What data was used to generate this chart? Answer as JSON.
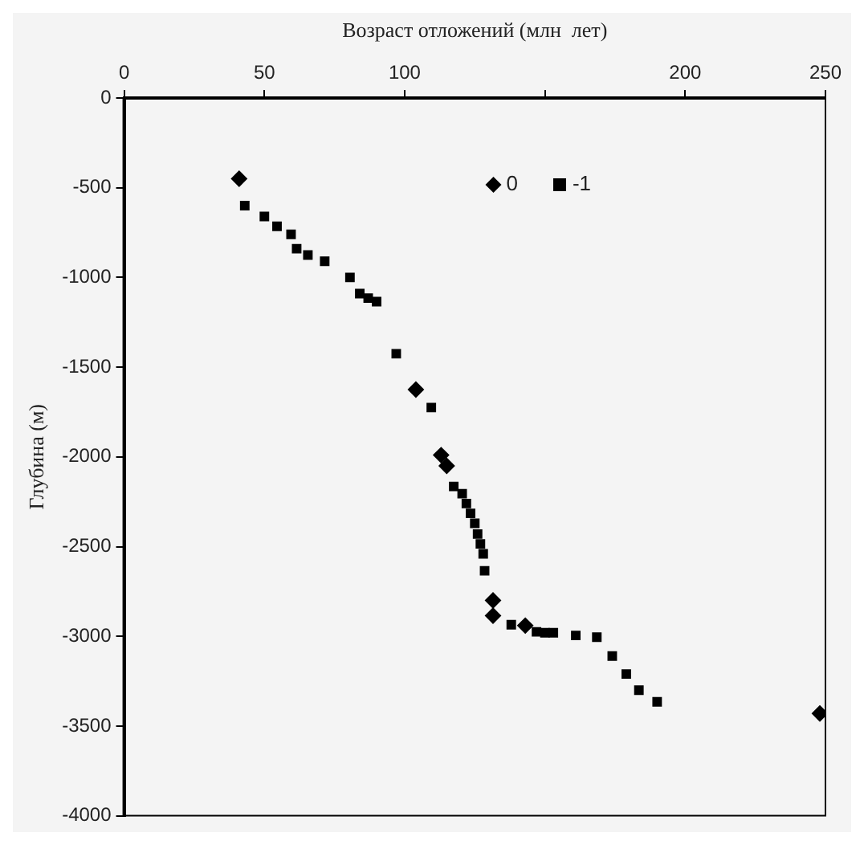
{
  "chart_data": {
    "type": "scatter",
    "xlabel": "Возраст отложений (млн  лет)",
    "ylabel": "Глубина (м)",
    "xlim": [
      0,
      250
    ],
    "xticks": [
      0,
      50,
      100,
      {
        "value": 150,
        "label": null
      },
      200,
      250
    ],
    "ylim": [
      -4000,
      0
    ],
    "yticks": [
      -4000,
      -3500,
      -3000,
      -2500,
      -2000,
      -1500,
      -1000,
      -500,
      0
    ],
    "grid": false,
    "legend": "top",
    "series": [
      {
        "name": "0",
        "color": "#000000",
        "marker": "diamond",
        "x": [
          41,
          104,
          113,
          115,
          131.5,
          131.5,
          143,
          248
        ],
        "values": [
          -450,
          -1625,
          -1990,
          -2050,
          -2800,
          -2885,
          -2940,
          -3430
        ]
      },
      {
        "name": "-1",
        "color": "#000000",
        "marker": "square",
        "x": [
          43,
          50,
          54.5,
          59.5,
          61.5,
          65.5,
          71.5,
          80.5,
          84,
          87,
          90,
          97,
          109.5,
          117.5,
          120.5,
          122,
          123.5,
          125,
          126,
          127,
          128,
          128.5,
          138,
          143,
          147,
          150,
          153,
          161,
          168.5,
          174,
          179,
          183.5,
          190
        ],
        "values": [
          -600,
          -660,
          -715,
          -760,
          -840,
          -875,
          -910,
          -1000,
          -1090,
          -1115,
          -1135,
          -1425,
          -1725,
          -2165,
          -2205,
          -2260,
          -2315,
          -2370,
          -2430,
          -2485,
          -2540,
          -2635,
          -2935,
          null,
          -2975,
          -2980,
          -2980,
          -2995,
          -3005,
          -3110,
          -3210,
          -3300,
          -3365
        ]
      }
    ]
  }
}
